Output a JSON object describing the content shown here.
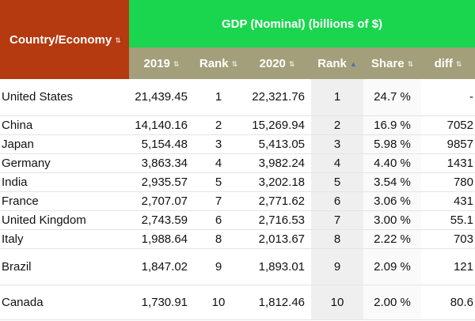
{
  "header": {
    "country_label": "Country/Economy",
    "group_label": "GDP (Nominal) (billions of $)",
    "sort_icon": "⇅",
    "sort_active_icon": "▲",
    "columns": [
      "2019",
      "Rank",
      "2020",
      "Rank",
      "Share",
      "diff"
    ]
  },
  "colors": {
    "corner_bg": "#b53a10",
    "group_bg": "#1ad64f",
    "subheader_bg": "#a39f7a",
    "sorted_column_bg": "#efefef"
  },
  "rows": [
    {
      "country": "United States",
      "gdp2019": "21,439.45",
      "rank2019": "1",
      "gdp2020": "22,321.76",
      "rank2020": "1",
      "share": "24.7 %",
      "diff": "-"
    },
    {
      "country": "China",
      "gdp2019": "14,140.16",
      "rank2019": "2",
      "gdp2020": "15,269.94",
      "rank2020": "2",
      "share": "16.9 %",
      "diff": "7052"
    },
    {
      "country": "Japan",
      "gdp2019": "5,154.48",
      "rank2019": "3",
      "gdp2020": "5,413.05",
      "rank2020": "3",
      "share": "5.98 %",
      "diff": "9857"
    },
    {
      "country": "Germany",
      "gdp2019": "3,863.34",
      "rank2019": "4",
      "gdp2020": "3,982.24",
      "rank2020": "4",
      "share": "4.40 %",
      "diff": "1431"
    },
    {
      "country": "India",
      "gdp2019": "2,935.57",
      "rank2019": "5",
      "gdp2020": "3,202.18",
      "rank2020": "5",
      "share": "3.54 %",
      "diff": "780"
    },
    {
      "country": "France",
      "gdp2019": "2,707.07",
      "rank2019": "7",
      "gdp2020": "2,771.62",
      "rank2020": "6",
      "share": "3.06 %",
      "diff": "431"
    },
    {
      "country": "United Kingdom",
      "gdp2019": "2,743.59",
      "rank2019": "6",
      "gdp2020": "2,716.53",
      "rank2020": "7",
      "share": "3.00 %",
      "diff": "55.1"
    },
    {
      "country": "Italy",
      "gdp2019": "1,988.64",
      "rank2019": "8",
      "gdp2020": "2,013.67",
      "rank2020": "8",
      "share": "2.22 %",
      "diff": "703"
    },
    {
      "country": "Brazil",
      "gdp2019": "1,847.02",
      "rank2019": "9",
      "gdp2020": "1,893.01",
      "rank2020": "9",
      "share": "2.09 %",
      "diff": "121"
    },
    {
      "country": "Canada",
      "gdp2019": "1,730.91",
      "rank2019": "10",
      "gdp2020": "1,812.46",
      "rank2020": "10",
      "share": "2.00 %",
      "diff": "80.6"
    }
  ]
}
